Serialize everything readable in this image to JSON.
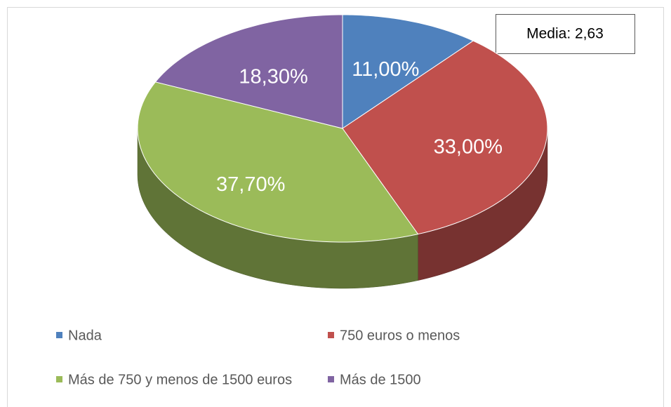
{
  "chart_data": {
    "type": "pie",
    "categories": [
      "Nada",
      "750 euros o menos",
      "Más de 750 y menos de 1500 euros",
      "Más de 1500"
    ],
    "values": [
      11,
      33,
      37.7,
      18.3
    ],
    "value_labels": [
      "11,00%",
      "33,00%",
      "37,70%",
      "18,30%"
    ],
    "colors": [
      "#4f81bd",
      "#c0504d",
      "#9bbb59",
      "#8064a2"
    ],
    "annotation": "Media: 2,63",
    "legend": "bottom"
  }
}
